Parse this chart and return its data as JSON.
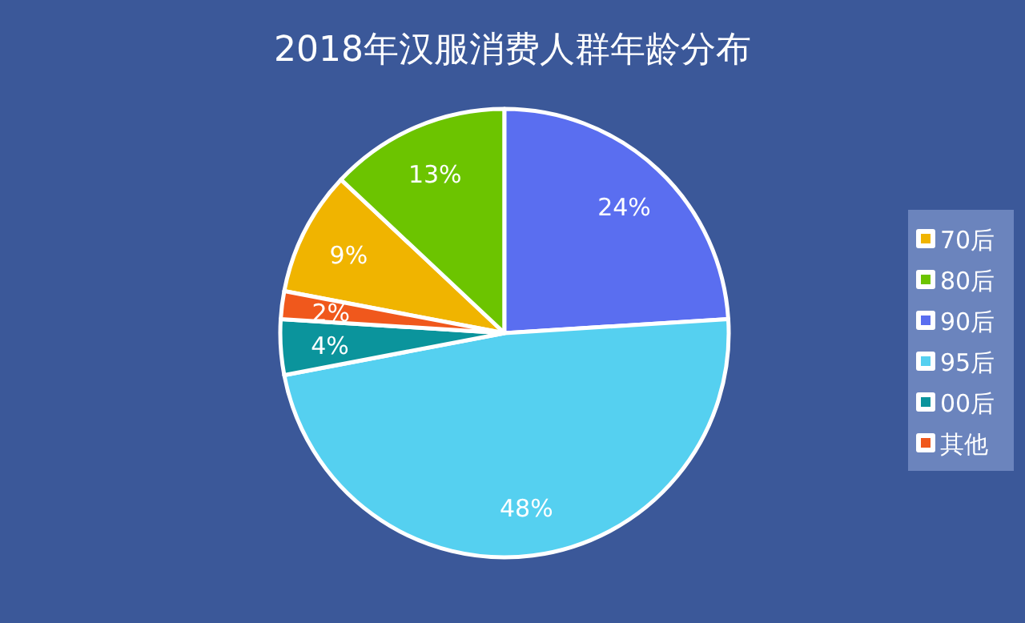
{
  "chart_data": {
    "type": "pie",
    "title": "2018年汉服消费人群年龄分布",
    "categories": [
      "70后",
      "80后",
      "90后",
      "95后",
      "00后",
      "其他"
    ],
    "values": [
      9,
      13,
      24,
      48,
      4,
      2
    ],
    "value_labels": [
      "9%",
      "13%",
      "24%",
      "48%",
      "4%",
      "2%"
    ],
    "colors": [
      "#f0b400",
      "#6cc400",
      "#5a6ef0",
      "#55d0f0",
      "#0b949c",
      "#f0581c"
    ],
    "legend": "right"
  }
}
